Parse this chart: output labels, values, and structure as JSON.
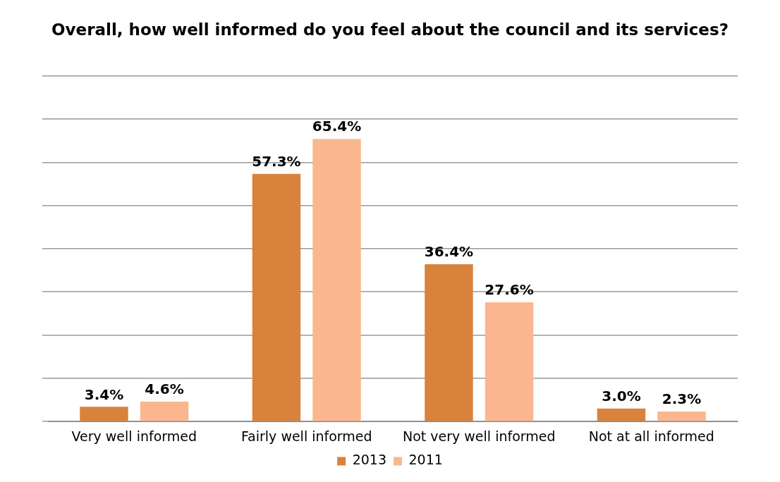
{
  "chart_data": {
    "type": "bar",
    "title": "Overall, how well informed do you feel about the council and its services?",
    "categories": [
      "Very well informed",
      "Fairly well informed",
      "Not very well informed",
      "Not at all informed"
    ],
    "series": [
      {
        "name": "2013",
        "color": "#d9823b",
        "values": [
          3.4,
          57.3,
          36.4,
          3.0
        ],
        "value_labels": [
          "3.4%",
          "57.3%",
          "36.4%",
          "3.0%"
        ]
      },
      {
        "name": "2011",
        "color": "#fab78f",
        "values": [
          4.6,
          65.4,
          27.6,
          2.3
        ],
        "value_labels": [
          "4.6%",
          "65.4%",
          "27.6%",
          "2.3%"
        ]
      }
    ],
    "ylim": [
      0,
      80
    ],
    "yticks": [
      0,
      10,
      20,
      30,
      40,
      50,
      60,
      70,
      80
    ],
    "tick_labels": "x",
    "grid": "y",
    "legend": "bottom"
  }
}
